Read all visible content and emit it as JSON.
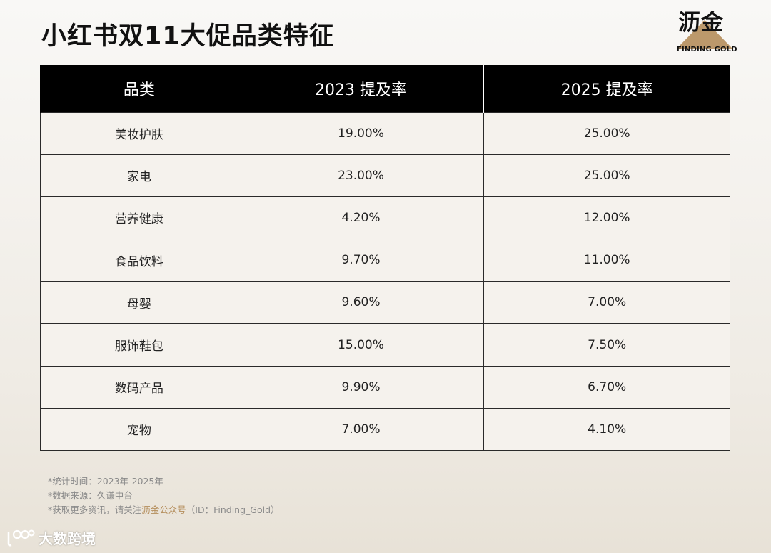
{
  "title": "小红书双11大促品类特征",
  "brand": {
    "name": "沥金",
    "subtitle": "FINDING GOLD",
    "accent_color": "#b58e5c"
  },
  "chart_data": {
    "type": "table",
    "columns": [
      "品类",
      "2023 提及率",
      "2025 提及率"
    ],
    "rows": [
      [
        "美妆护肤",
        "19.00%",
        "25.00%"
      ],
      [
        "家电",
        "23.00%",
        "25.00%"
      ],
      [
        "营养健康",
        "4.20%",
        "12.00%"
      ],
      [
        "食品饮料",
        "9.70%",
        "11.00%"
      ],
      [
        "母婴",
        "9.60%",
        "7.00%"
      ],
      [
        "服饰鞋包",
        "15.00%",
        "7.50%"
      ],
      [
        "数码产品",
        "9.90%",
        "6.70%"
      ],
      [
        "宠物",
        "7.00%",
        "4.10%"
      ]
    ]
  },
  "notes": {
    "line1": "*统计时间：2023年-2025年",
    "line2": "*数据来源：久谦中台",
    "line3_prefix": "*获取更多资讯，请关注",
    "line3_accent": "沥金公众号",
    "line3_suffix": "（ID：Finding_Gold）"
  },
  "watermark": {
    "text": "大数跨境",
    "icon": "bubble-logo-icon"
  }
}
